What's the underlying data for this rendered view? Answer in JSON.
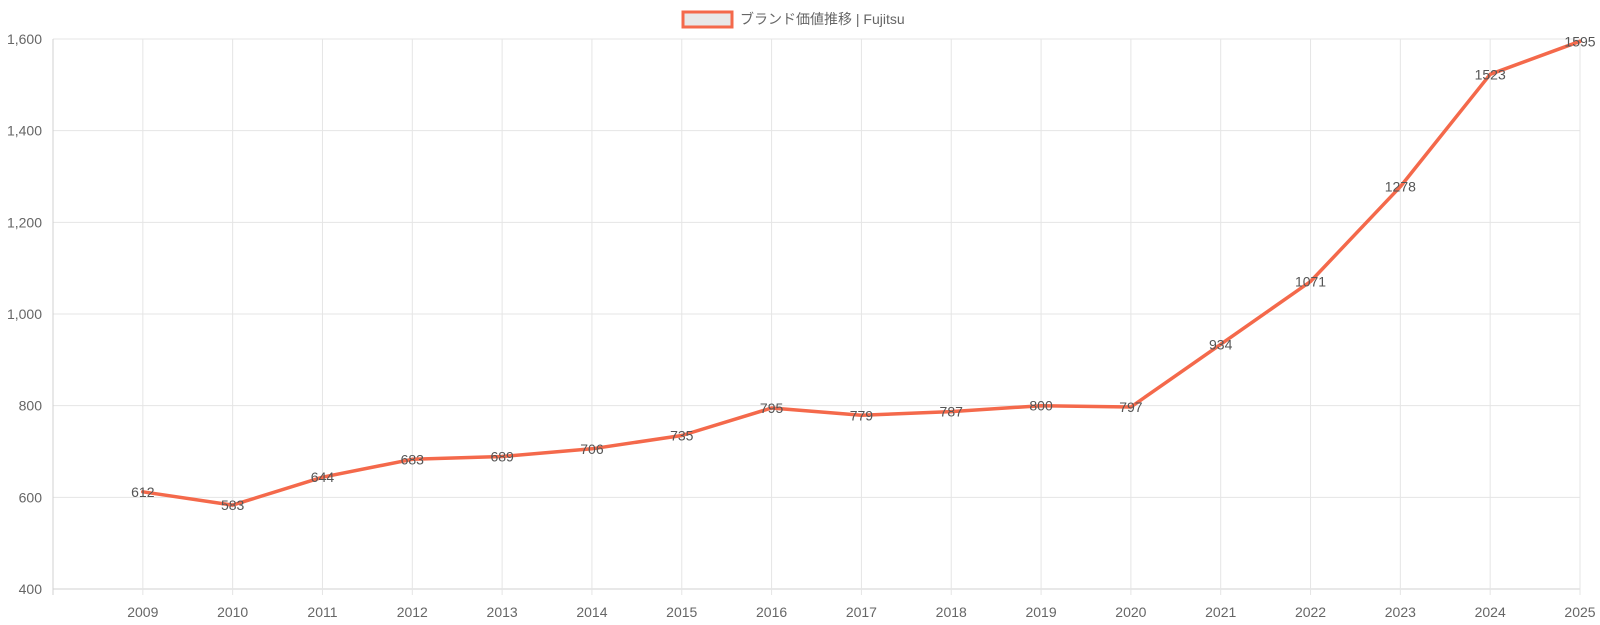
{
  "chart_data": {
    "type": "line",
    "legend": {
      "position": "top",
      "label": "ブランド価値推移 | Fujitsu"
    },
    "categories": [
      "2009",
      "2010",
      "2011",
      "2012",
      "2013",
      "2014",
      "2015",
      "2016",
      "2017",
      "2018",
      "2019",
      "2020",
      "2021",
      "2022",
      "2023",
      "2024",
      "2025"
    ],
    "series": [
      {
        "name": "ブランド価値推移 | Fujitsu",
        "values": [
          612,
          583,
          644,
          683,
          689,
          706,
          735,
          795,
          779,
          787,
          800,
          797,
          934,
          1071,
          1278,
          1523,
          1595
        ],
        "color": "#f4694b",
        "legend_fill": "#e8e8e8"
      }
    ],
    "ylim": [
      400,
      1600
    ],
    "y_ticks": [
      "400",
      "600",
      "800",
      "1,000",
      "1,200",
      "1,400",
      "1,600"
    ],
    "grid": true,
    "data_labels": true
  }
}
